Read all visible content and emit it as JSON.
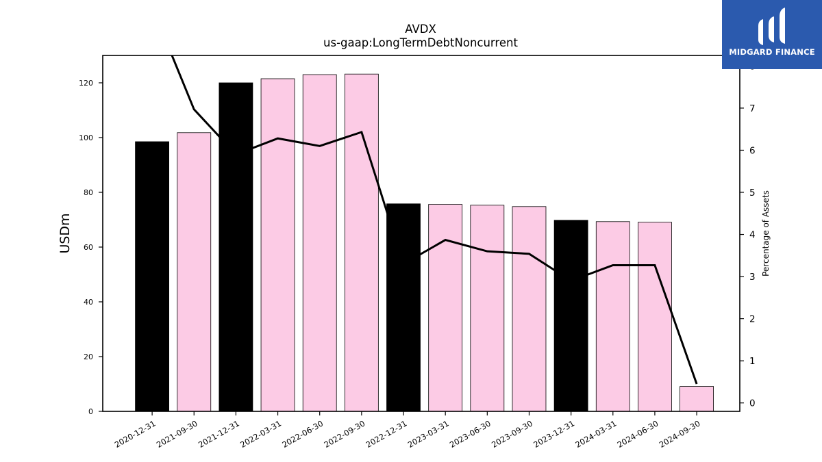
{
  "chart_data": {
    "type": "bar",
    "title": "AVDX",
    "subtitle": "us-gaap:LongTermDebtNoncurrent",
    "ylabel": "USDm",
    "y2label": "Percentage of Assets",
    "ylim": [
      0,
      130
    ],
    "y2lim": [
      -0.2,
      8.25
    ],
    "yticks": [
      0,
      20,
      40,
      60,
      80,
      100,
      120
    ],
    "y2ticks": [
      0,
      1,
      2,
      3,
      4,
      5,
      6,
      7,
      8
    ],
    "categories": [
      "2020-12-31",
      "2021-09-30",
      "2021-12-31",
      "2022-03-31",
      "2022-06-30",
      "2022-09-30",
      "2022-12-31",
      "2023-03-31",
      "2023-06-30",
      "2023-09-30",
      "2023-12-31",
      "2024-03-31",
      "2024-06-30",
      "2024-09-30"
    ],
    "series": [
      {
        "kind": "bar",
        "values": [
          98.5,
          101.8,
          120.0,
          121.5,
          123.0,
          123.2,
          75.8,
          75.6,
          75.3,
          74.8,
          69.8,
          69.3,
          69.1,
          9.1
        ],
        "colors": [
          "#000000",
          "#fccbe5",
          "#000000",
          "#fccbe5",
          "#fccbe5",
          "#fccbe5",
          "#000000",
          "#fccbe5",
          "#fccbe5",
          "#fccbe5",
          "#000000",
          "#fccbe5",
          "#fccbe5",
          "#fccbe5"
        ]
      },
      {
        "kind": "line",
        "axis": "right",
        "values": [
          9.4,
          6.97,
          5.9,
          6.28,
          6.1,
          6.43,
          3.3,
          3.87,
          3.6,
          3.54,
          2.9,
          3.27,
          3.27,
          0.45
        ]
      }
    ],
    "grid": false,
    "legend": "none"
  },
  "logo": {
    "text": "MIDGARD FINANCE",
    "background": "#2b5aae"
  }
}
